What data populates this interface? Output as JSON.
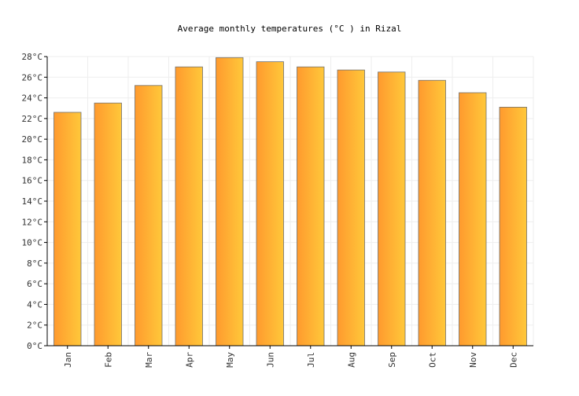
{
  "chart_data": {
    "type": "bar",
    "title": "Average monthly temperatures (°C ) in Rizal",
    "xlabel": "",
    "ylabel": "",
    "categories": [
      "Jan",
      "Feb",
      "Mar",
      "Apr",
      "May",
      "Jun",
      "Jul",
      "Aug",
      "Sep",
      "Oct",
      "Nov",
      "Dec"
    ],
    "values": [
      22.6,
      23.5,
      25.2,
      27.0,
      27.9,
      27.5,
      27.0,
      26.7,
      26.5,
      25.7,
      24.5,
      23.1
    ],
    "ylim": [
      0,
      28
    ],
    "yticks": [
      0,
      2,
      4,
      6,
      8,
      10,
      12,
      14,
      16,
      18,
      20,
      22,
      24,
      26,
      28
    ],
    "ytick_labels": [
      "0°C",
      "2°C",
      "4°C",
      "6°C",
      "8°C",
      "10°C",
      "12°C",
      "14°C",
      "16°C",
      "18°C",
      "20°C",
      "22°C",
      "24°C",
      "26°C",
      "28°C"
    ],
    "grid": true,
    "legend": "none",
    "colors": {
      "bar_left": "#ff9a2e",
      "bar_right": "#ffc83a",
      "bar_edge": "#707070",
      "grid": "#eeeeee",
      "axis": "#000000"
    }
  }
}
